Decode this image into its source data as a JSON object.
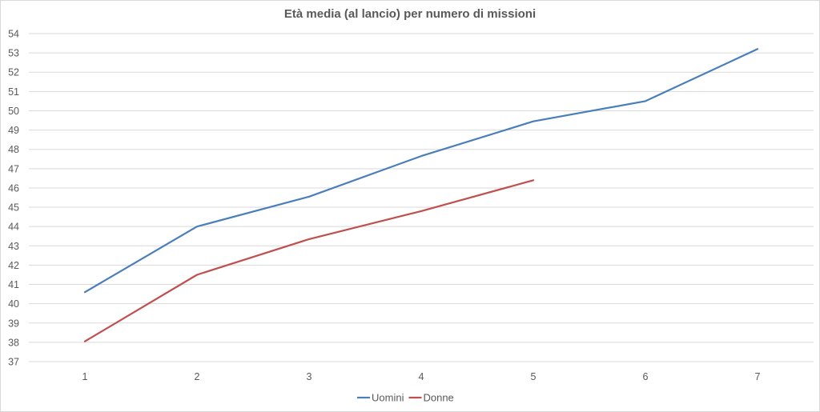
{
  "chart_data": {
    "type": "line",
    "title": "Età media (al lancio) per numero di missioni",
    "xlabel": "",
    "ylabel": "",
    "categories": [
      "1",
      "2",
      "3",
      "4",
      "5",
      "6",
      "7"
    ],
    "ylim": [
      37,
      54
    ],
    "yticks": [
      37,
      38,
      39,
      40,
      41,
      42,
      43,
      44,
      45,
      46,
      47,
      48,
      49,
      50,
      51,
      52,
      53,
      54
    ],
    "grid": true,
    "legend_position": "bottom",
    "series": [
      {
        "name": "Uomini",
        "color": "#4a7ebb",
        "values": [
          40.6,
          44.0,
          45.55,
          47.65,
          49.45,
          50.5,
          53.2
        ]
      },
      {
        "name": "Donne",
        "color": "#c0504d",
        "values": [
          38.05,
          41.5,
          43.35,
          44.8,
          46.4,
          null,
          null
        ]
      }
    ]
  }
}
